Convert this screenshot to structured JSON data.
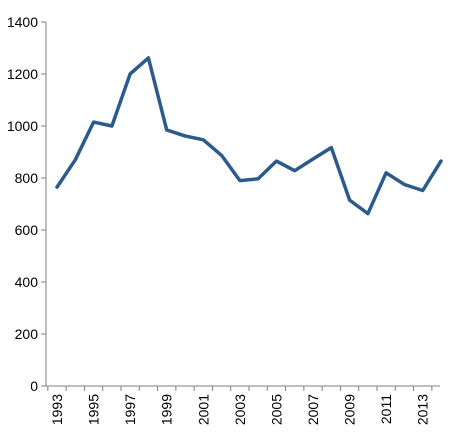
{
  "chart_data": {
    "type": "line",
    "title": "",
    "xlabel": "",
    "ylabel": "",
    "ylim": [
      0,
      1400
    ],
    "yticks": [
      0,
      200,
      400,
      600,
      800,
      1000,
      1200,
      1400
    ],
    "x": [
      1993,
      1994,
      1995,
      1996,
      1997,
      1998,
      1999,
      2000,
      2001,
      2002,
      2003,
      2004,
      2005,
      2006,
      2007,
      2008,
      2009,
      2010,
      2011,
      2012,
      2013,
      2014
    ],
    "xtick_labels": [
      "1993",
      "1995",
      "1997",
      "1999",
      "2001",
      "2003",
      "2005",
      "2007",
      "2009",
      "2011",
      "2013"
    ],
    "series": [
      {
        "values": [
          765,
          870,
          1015,
          1000,
          1200,
          1262,
          985,
          962,
          947,
          887,
          790,
          797,
          865,
          828,
          873,
          917,
          715,
          663,
          820,
          775,
          752,
          865
        ],
        "color": "#2b5a8c"
      }
    ],
    "grid": false,
    "legend": "none"
  }
}
